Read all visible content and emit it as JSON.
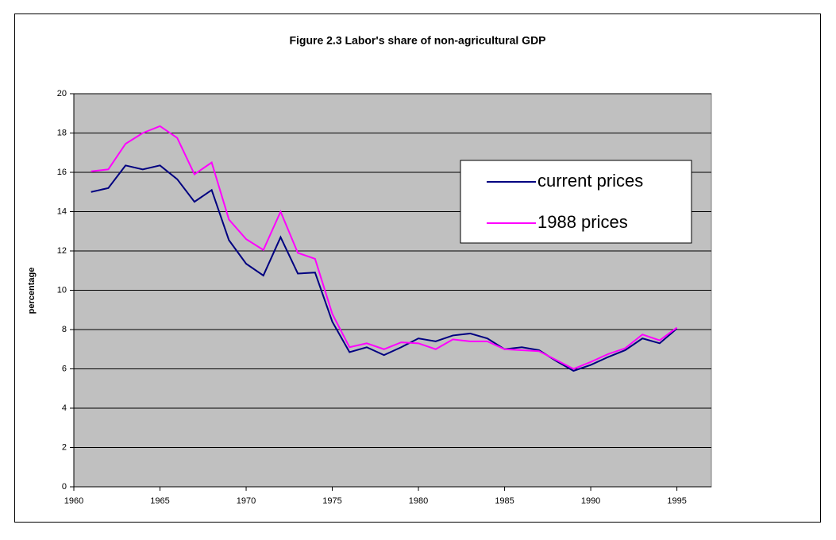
{
  "chart_data": {
    "type": "line",
    "title": "Figure 2.3 Labor's share of non-agricultural GDP",
    "y_label": "percentage",
    "x": [
      1961,
      1962,
      1963,
      1964,
      1965,
      1966,
      1967,
      1968,
      1969,
      1970,
      1971,
      1972,
      1973,
      1974,
      1975,
      1976,
      1977,
      1978,
      1979,
      1980,
      1981,
      1982,
      1983,
      1984,
      1985,
      1986,
      1987,
      1988,
      1989,
      1990,
      1991,
      1992,
      1993,
      1994,
      1995
    ],
    "series": [
      {
        "name": "current prices",
        "color": "#000080",
        "values": [
          15.0,
          15.2,
          16.35,
          16.15,
          16.35,
          15.65,
          14.5,
          15.1,
          12.55,
          11.35,
          10.75,
          12.7,
          10.85,
          10.9,
          8.4,
          6.85,
          7.1,
          6.7,
          7.1,
          7.55,
          7.4,
          7.7,
          7.8,
          7.55,
          7.0,
          7.1,
          6.95,
          6.4,
          5.9,
          6.2,
          6.6,
          6.95,
          7.55,
          7.3,
          8.05
        ]
      },
      {
        "name": "1988 prices",
        "color": "#ff00ff",
        "values": [
          16.05,
          16.15,
          17.45,
          18.0,
          18.35,
          17.75,
          15.9,
          16.5,
          13.6,
          12.6,
          12.05,
          14.0,
          11.9,
          11.6,
          8.8,
          7.1,
          7.3,
          7.0,
          7.35,
          7.3,
          7.0,
          7.5,
          7.4,
          7.4,
          7.0,
          6.95,
          6.9,
          6.45,
          6.0,
          6.35,
          6.75,
          7.05,
          7.75,
          7.45,
          8.1
        ]
      }
    ],
    "xlim": [
      1960,
      1997
    ],
    "xticks": [
      1960,
      1965,
      1970,
      1975,
      1980,
      1985,
      1990,
      1995
    ],
    "ylim": [
      0,
      20
    ],
    "yticks": [
      0,
      2,
      4,
      6,
      8,
      10,
      12,
      14,
      16,
      18,
      20
    ],
    "grid": true
  }
}
